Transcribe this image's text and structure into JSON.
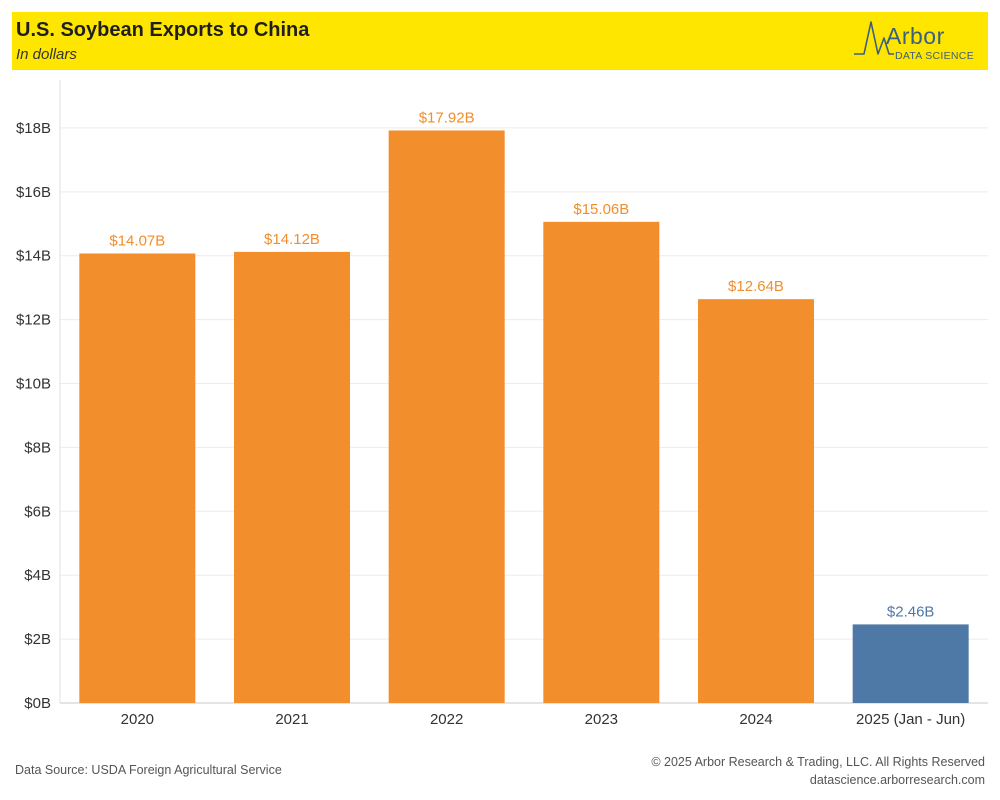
{
  "header": {
    "title": "U.S. Soybean Exports to China",
    "subtitle": "In dollars",
    "background_color": "#ffe600"
  },
  "logo": {
    "word": "Arbor",
    "tagline": "DATA SCIENCE",
    "color": "#3c5f80"
  },
  "footer": {
    "source": "Data Source: USDA Foreign Agricultural Service",
    "copyright": "© 2025 Arbor Research & Trading, LLC. All Rights Reserved",
    "website": "datascience.arborresearch.com"
  },
  "chart_data": {
    "type": "bar",
    "title": "U.S. Soybean Exports to China",
    "subtitle": "In dollars",
    "categories": [
      "2020",
      "2021",
      "2022",
      "2023",
      "2024",
      "2025 (Jan - Jun)"
    ],
    "values": [
      14.07,
      14.12,
      17.92,
      15.06,
      12.64,
      2.46
    ],
    "value_labels": [
      "$14.07B",
      "$14.12B",
      "$17.92B",
      "$15.06B",
      "$12.64B",
      "$2.46B"
    ],
    "unit": "billion USD",
    "bar_colors": [
      "#f28e2b",
      "#f28e2b",
      "#f28e2b",
      "#f28e2b",
      "#f28e2b",
      "#4e79a7"
    ],
    "ylim": [
      0,
      19.5
    ],
    "yticks": [
      0,
      2,
      4,
      6,
      8,
      10,
      12,
      14,
      16,
      18
    ],
    "ytick_labels": [
      "$0B",
      "$2B",
      "$4B",
      "$6B",
      "$8B",
      "$10B",
      "$12B",
      "$14B",
      "$16B",
      "$18B"
    ],
    "grid": "horizontal",
    "xlabel": "",
    "ylabel": ""
  }
}
